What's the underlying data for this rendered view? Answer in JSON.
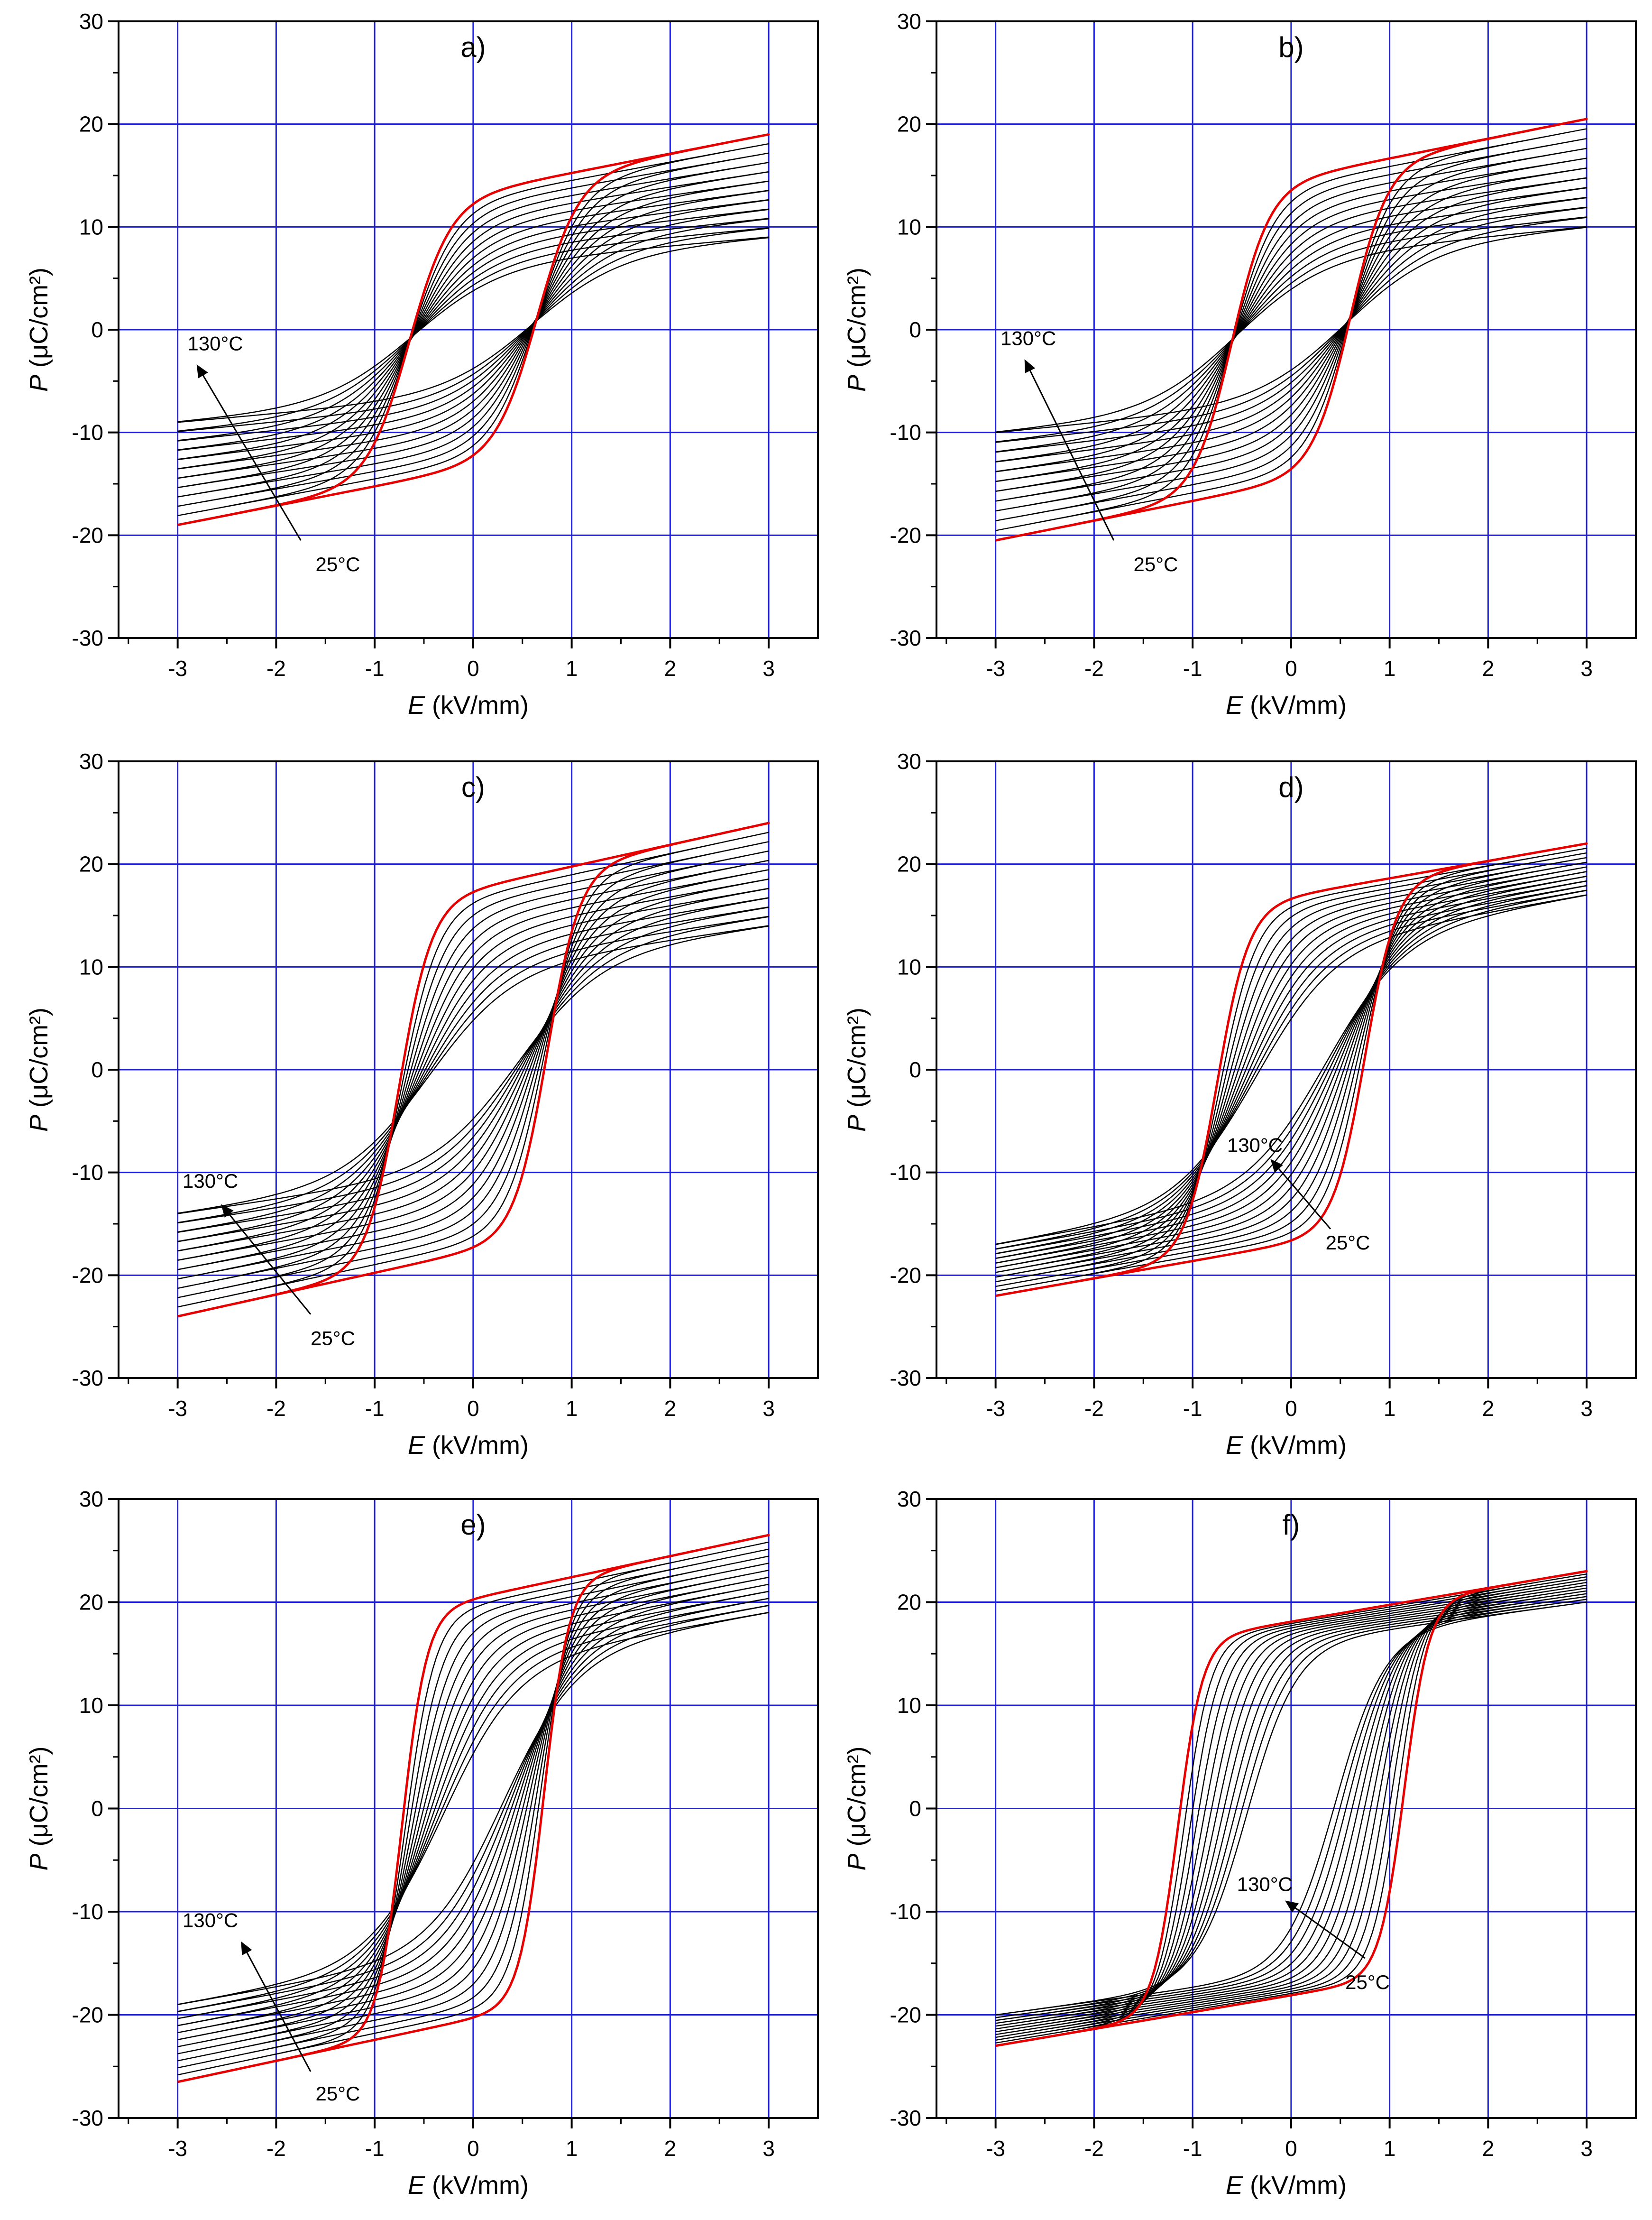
{
  "figure": {
    "grid_color": "#1f1fd6",
    "curve_color": "#000000",
    "highlight_color": "#e60000",
    "temperature_count": 12
  },
  "chart_data": [
    {
      "type": "line",
      "panel": "a)",
      "title": "a)",
      "xlabel_var": "E",
      "xlabel_unit": " (kV/mm)",
      "ylabel_var": "P",
      "ylabel_unit": " (μC/cm²)",
      "xlim": [
        -3.6,
        3.5
      ],
      "ylim": [
        -30,
        30
      ],
      "xticks": [
        -3,
        -2,
        -1,
        0,
        1,
        2,
        3
      ],
      "yticks": [
        -30,
        -20,
        -10,
        0,
        10,
        20,
        30
      ],
      "grid": true,
      "annotation_high": "130°C",
      "annotation_low": "25°C",
      "arrow_from": [
        -1.75,
        -20.5
      ],
      "arrow_to": [
        -2.8,
        -3.5
      ],
      "label_high_at": [
        -2.9,
        -2.0
      ],
      "label_low_at": [
        -1.6,
        -23.5
      ],
      "loops": {
        "min": {
          "label": "130°C",
          "Ps": 9,
          "Ec": 0.6,
          "w": 0.9,
          "alpha": 0.13,
          "antiferro": 0.9
        },
        "max": {
          "label": "25°C",
          "Ps": 19,
          "Ec": 0.65,
          "w": 0.42,
          "alpha": 0.14,
          "antiferro": 0
        }
      }
    },
    {
      "type": "line",
      "panel": "b)",
      "title": "b)",
      "xlabel_var": "E",
      "xlabel_unit": " (kV/mm)",
      "ylabel_var": "P",
      "ylabel_unit": " (μC/cm²)",
      "xlim": [
        -3.6,
        3.5
      ],
      "ylim": [
        -30,
        30
      ],
      "xticks": [
        -3,
        -2,
        -1,
        0,
        1,
        2,
        3
      ],
      "yticks": [
        -30,
        -20,
        -10,
        0,
        10,
        20,
        30
      ],
      "grid": true,
      "annotation_high": "130°C",
      "annotation_low": "25°C",
      "arrow_from": [
        -1.8,
        -20.5
      ],
      "arrow_to": [
        -2.7,
        -3.0
      ],
      "label_high_at": [
        -2.95,
        -1.5
      ],
      "label_low_at": [
        -1.6,
        -23.5
      ],
      "loops": {
        "min": {
          "label": "130°C",
          "Ps": 10,
          "Ec": 0.55,
          "w": 0.9,
          "alpha": 0.13,
          "antiferro": 0.9
        },
        "max": {
          "label": "25°C",
          "Ps": 20.5,
          "Ec": 0.6,
          "w": 0.38,
          "alpha": 0.13,
          "antiferro": 0
        }
      }
    },
    {
      "type": "line",
      "panel": "c)",
      "title": "c)",
      "xlabel_var": "E",
      "xlabel_unit": " (kV/mm)",
      "ylabel_var": "P",
      "ylabel_unit": " (μC/cm²)",
      "xlim": [
        -3.6,
        3.5
      ],
      "ylim": [
        -30,
        30
      ],
      "xticks": [
        -3,
        -2,
        -1,
        0,
        1,
        2,
        3
      ],
      "yticks": [
        -30,
        -20,
        -10,
        0,
        10,
        20,
        30
      ],
      "grid": true,
      "annotation_high": "130°C",
      "annotation_low": "25°C",
      "arrow_from": [
        -1.65,
        -23.8
      ],
      "arrow_to": [
        -2.55,
        -13.2
      ],
      "label_high_at": [
        -2.95,
        -11.5
      ],
      "label_low_at": [
        -1.65,
        -26.8
      ],
      "loops": {
        "min": {
          "label": "130°C",
          "Ps": 14,
          "Ec": 0.45,
          "w": 0.85,
          "alpha": 0.14,
          "antiferro": 0.5
        },
        "max": {
          "label": "25°C",
          "Ps": 24,
          "Ec": 0.75,
          "w": 0.33,
          "alpha": 0.12,
          "antiferro": 0
        }
      }
    },
    {
      "type": "line",
      "panel": "d)",
      "title": "d)",
      "xlabel_var": "E",
      "xlabel_unit": " (kV/mm)",
      "ylabel_var": "P",
      "ylabel_unit": " (μC/cm²)",
      "xlim": [
        -3.6,
        3.5
      ],
      "ylim": [
        -30,
        30
      ],
      "xticks": [
        -3,
        -2,
        -1,
        0,
        1,
        2,
        3
      ],
      "yticks": [
        -30,
        -20,
        -10,
        0,
        10,
        20,
        30
      ],
      "grid": true,
      "annotation_high": "130°C",
      "annotation_low": "25°C",
      "arrow_from": [
        0.4,
        -15.5
      ],
      "arrow_to": [
        -0.2,
        -8.8
      ],
      "label_high_at": [
        -0.65,
        -8.0
      ],
      "label_low_at": [
        0.35,
        -17.5
      ],
      "loops": {
        "min": {
          "label": "130°C",
          "Ps": 17,
          "Ec": 0.35,
          "w": 0.8,
          "alpha": 0.14,
          "antiferro": 0.2
        },
        "max": {
          "label": "25°C",
          "Ps": 22,
          "Ec": 0.75,
          "w": 0.32,
          "alpha": 0.1,
          "antiferro": 0
        }
      }
    },
    {
      "type": "line",
      "panel": "e)",
      "title": "e)",
      "xlabel_var": "E",
      "xlabel_unit": " (kV/mm)",
      "ylabel_var": "P",
      "ylabel_unit": " (μC/cm²)",
      "xlim": [
        -3.6,
        3.5
      ],
      "ylim": [
        -30,
        30
      ],
      "xticks": [
        -3,
        -2,
        -1,
        0,
        1,
        2,
        3
      ],
      "yticks": [
        -30,
        -20,
        -10,
        0,
        10,
        20,
        30
      ],
      "grid": true,
      "annotation_high": "130°C",
      "annotation_low": "25°C",
      "arrow_from": [
        -1.65,
        -25.5
      ],
      "arrow_to": [
        -2.35,
        -13.0
      ],
      "label_high_at": [
        -2.95,
        -11.5
      ],
      "label_low_at": [
        -1.6,
        -28.3
      ],
      "loops": {
        "min": {
          "label": "130°C",
          "Ps": 19,
          "Ec": 0.3,
          "w": 0.75,
          "alpha": 0.12,
          "antiferro": 0.2
        },
        "max": {
          "label": "25°C",
          "Ps": 26.5,
          "Ec": 0.72,
          "w": 0.25,
          "alpha": 0.1,
          "antiferro": 0
        }
      }
    },
    {
      "type": "line",
      "panel": "f)",
      "title": "f)",
      "xlabel_var": "E",
      "xlabel_unit": " (kV/mm)",
      "ylabel_var": "P",
      "ylabel_unit": " (μC/cm²)",
      "xlim": [
        -3.6,
        3.5
      ],
      "ylim": [
        -30,
        30
      ],
      "xticks": [
        -3,
        -2,
        -1,
        0,
        1,
        2,
        3
      ],
      "yticks": [
        -30,
        -20,
        -10,
        0,
        10,
        20,
        30
      ],
      "grid": true,
      "annotation_high": "130°C",
      "annotation_low": "25°C",
      "arrow_from": [
        0.75,
        -14.5
      ],
      "arrow_to": [
        -0.05,
        -9.0
      ],
      "label_high_at": [
        -0.55,
        -8.0
      ],
      "label_low_at": [
        0.55,
        -17.5
      ],
      "loops": {
        "min": {
          "label": "130°C",
          "Ps": 20,
          "Ec": 0.45,
          "w": 0.5,
          "alpha": 0.08,
          "antiferro": 0
        },
        "max": {
          "label": "25°C",
          "Ps": 23,
          "Ec": 1.15,
          "w": 0.25,
          "alpha": 0.09,
          "antiferro": 0
        }
      }
    }
  ]
}
